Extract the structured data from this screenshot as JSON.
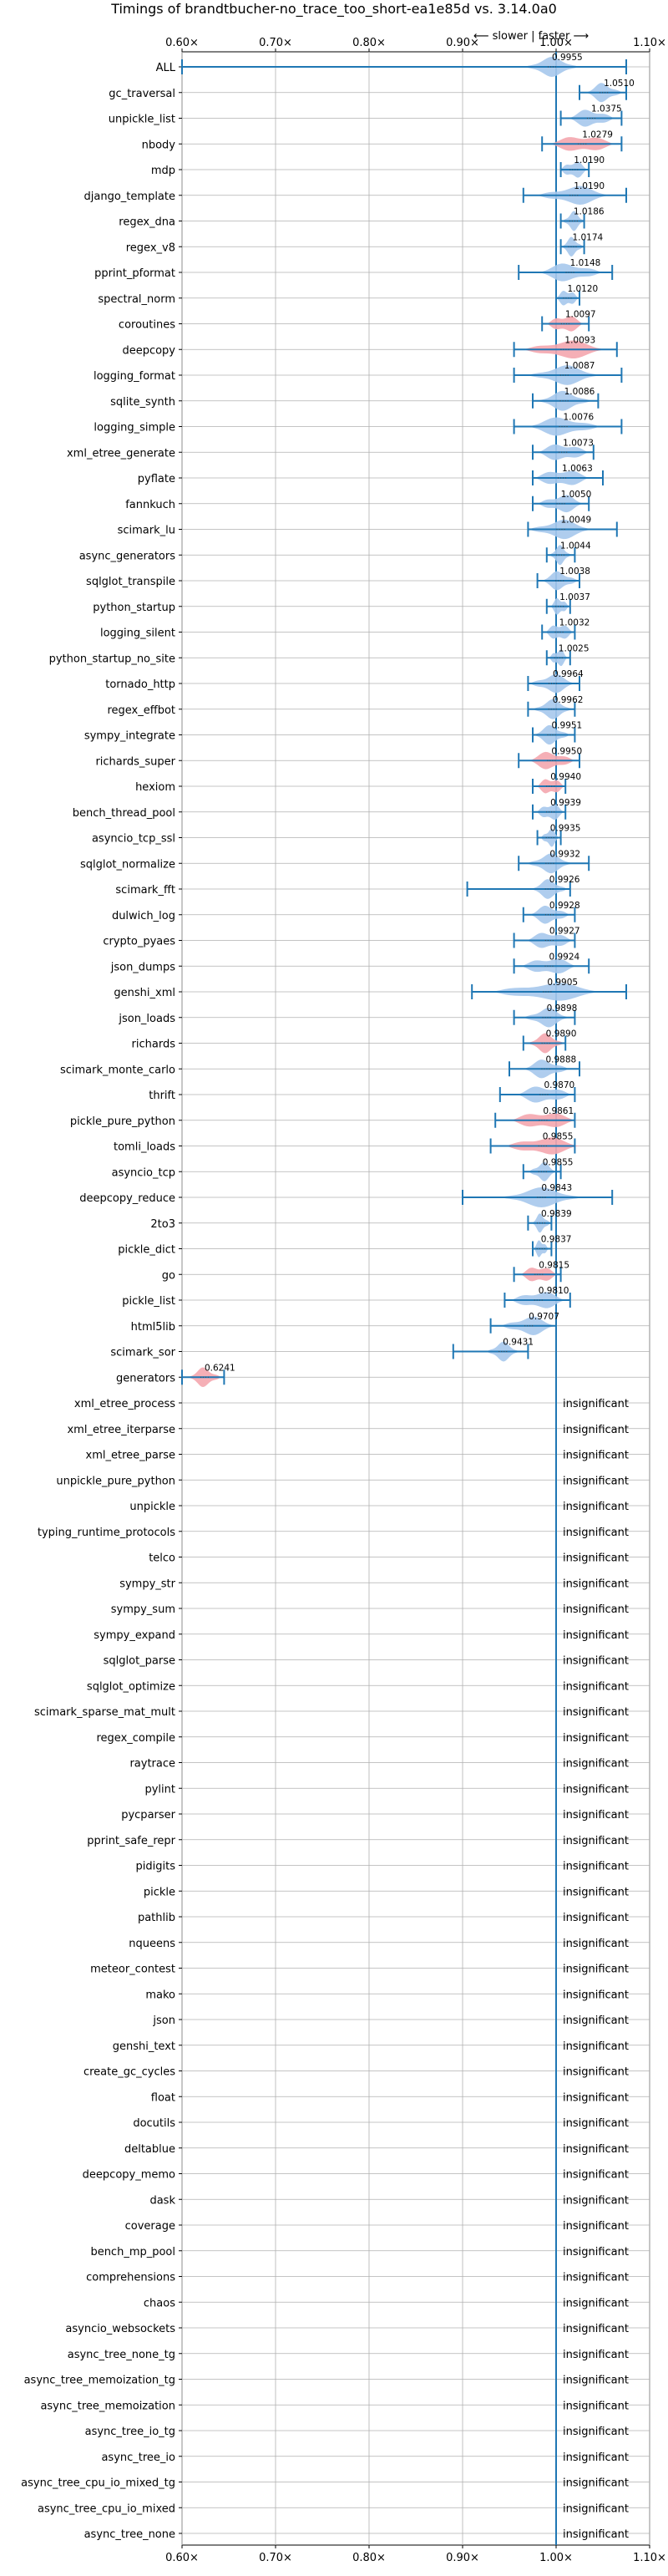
{
  "chart_data": {
    "type": "violin",
    "title": "Timings of brandtbucher-no_trace_too_short-ea1e85d vs. 3.14.0a0",
    "direction_note": "⟵ slower  |  faster ⟶",
    "xlim": [
      0.6,
      1.1
    ],
    "x_ticks": [
      0.6,
      0.7,
      0.8,
      0.9,
      1.0,
      1.1
    ],
    "x_tick_labels": [
      "0.60×",
      "0.70×",
      "0.80×",
      "0.90×",
      "1.00×",
      "1.10×"
    ],
    "reference_x": 1.0,
    "grid": true,
    "colors": {
      "faster": "#a6c8ec",
      "slower": "#f4a6ae",
      "line": "#1f77b4",
      "grid": "#b0b0b0"
    },
    "insignificant_label": "insignificant",
    "benchmarks": [
      {
        "name": "ALL",
        "value": 0.9955,
        "label": "0.9955",
        "lo": 0.6,
        "hi": 1.075,
        "spread": 0.03,
        "status": "faster"
      },
      {
        "name": "gc_traversal",
        "value": 1.051,
        "label": "1.0510",
        "lo": 1.025,
        "hi": 1.075,
        "spread": 0.02,
        "status": "faster"
      },
      {
        "name": "unpickle_list",
        "value": 1.0375,
        "label": "1.0375",
        "lo": 1.005,
        "hi": 1.07,
        "spread": 0.025,
        "status": "faster"
      },
      {
        "name": "nbody",
        "value": 1.0279,
        "label": "1.0279",
        "lo": 0.985,
        "hi": 1.07,
        "spread": 0.035,
        "status": "slower"
      },
      {
        "name": "mdp",
        "value": 1.019,
        "label": "1.0190",
        "lo": 1.005,
        "hi": 1.035,
        "spread": 0.015,
        "status": "faster"
      },
      {
        "name": "django_template",
        "value": 1.019,
        "label": "1.0190",
        "lo": 0.965,
        "hi": 1.075,
        "spread": 0.04,
        "status": "faster"
      },
      {
        "name": "regex_dna",
        "value": 1.0186,
        "label": "1.0186",
        "lo": 1.005,
        "hi": 1.03,
        "spread": 0.012,
        "status": "faster"
      },
      {
        "name": "regex_v8",
        "value": 1.0174,
        "label": "1.0174",
        "lo": 1.005,
        "hi": 1.03,
        "spread": 0.012,
        "status": "faster"
      },
      {
        "name": "pprint_pformat",
        "value": 1.0148,
        "label": "1.0148",
        "lo": 0.96,
        "hi": 1.06,
        "spread": 0.035,
        "status": "faster"
      },
      {
        "name": "spectral_norm",
        "value": 1.012,
        "label": "1.0120",
        "lo": 1.0,
        "hi": 1.025,
        "spread": 0.012,
        "status": "faster"
      },
      {
        "name": "coroutines",
        "value": 1.0097,
        "label": "1.0097",
        "lo": 0.985,
        "hi": 1.035,
        "spread": 0.02,
        "status": "slower"
      },
      {
        "name": "deepcopy",
        "value": 1.0093,
        "label": "1.0093",
        "lo": 0.955,
        "hi": 1.065,
        "spread": 0.045,
        "status": "slower"
      },
      {
        "name": "logging_format",
        "value": 1.0087,
        "label": "1.0087",
        "lo": 0.955,
        "hi": 1.07,
        "spread": 0.04,
        "status": "faster"
      },
      {
        "name": "sqlite_synth",
        "value": 1.0086,
        "label": "1.0086",
        "lo": 0.975,
        "hi": 1.045,
        "spread": 0.03,
        "status": "faster"
      },
      {
        "name": "logging_simple",
        "value": 1.0076,
        "label": "1.0076",
        "lo": 0.955,
        "hi": 1.07,
        "spread": 0.04,
        "status": "faster"
      },
      {
        "name": "xml_etree_generate",
        "value": 1.0073,
        "label": "1.0073",
        "lo": 0.975,
        "hi": 1.04,
        "spread": 0.028,
        "status": "faster"
      },
      {
        "name": "pyflate",
        "value": 1.0063,
        "label": "1.0063",
        "lo": 0.975,
        "hi": 1.05,
        "spread": 0.03,
        "status": "faster"
      },
      {
        "name": "fannkuch",
        "value": 1.005,
        "label": "1.0050",
        "lo": 0.975,
        "hi": 1.035,
        "spread": 0.025,
        "status": "faster"
      },
      {
        "name": "scimark_lu",
        "value": 1.0049,
        "label": "1.0049",
        "lo": 0.97,
        "hi": 1.065,
        "spread": 0.035,
        "status": "faster"
      },
      {
        "name": "async_generators",
        "value": 1.0044,
        "label": "1.0044",
        "lo": 0.99,
        "hi": 1.02,
        "spread": 0.012,
        "status": "faster"
      },
      {
        "name": "sqlglot_transpile",
        "value": 1.0038,
        "label": "1.0038",
        "lo": 0.98,
        "hi": 1.025,
        "spread": 0.02,
        "status": "faster"
      },
      {
        "name": "python_startup",
        "value": 1.0037,
        "label": "1.0037",
        "lo": 0.99,
        "hi": 1.015,
        "spread": 0.01,
        "status": "faster"
      },
      {
        "name": "logging_silent",
        "value": 1.0032,
        "label": "1.0032",
        "lo": 0.985,
        "hi": 1.02,
        "spread": 0.015,
        "status": "faster"
      },
      {
        "name": "python_startup_no_site",
        "value": 1.0025,
        "label": "1.0025",
        "lo": 0.99,
        "hi": 1.015,
        "spread": 0.01,
        "status": "faster"
      },
      {
        "name": "tornado_http",
        "value": 0.9964,
        "label": "0.9964",
        "lo": 0.97,
        "hi": 1.025,
        "spread": 0.025,
        "status": "faster"
      },
      {
        "name": "regex_effbot",
        "value": 0.9962,
        "label": "0.9962",
        "lo": 0.97,
        "hi": 1.02,
        "spread": 0.022,
        "status": "faster"
      },
      {
        "name": "sympy_integrate",
        "value": 0.9951,
        "label": "0.9951",
        "lo": 0.975,
        "hi": 1.02,
        "spread": 0.02,
        "status": "faster"
      },
      {
        "name": "richards_super",
        "value": 0.995,
        "label": "0.9950",
        "lo": 0.96,
        "hi": 1.025,
        "spread": 0.025,
        "status": "slower"
      },
      {
        "name": "hexiom",
        "value": 0.994,
        "label": "0.9940",
        "lo": 0.975,
        "hi": 1.01,
        "spread": 0.015,
        "status": "slower"
      },
      {
        "name": "bench_thread_pool",
        "value": 0.9939,
        "label": "0.9939",
        "lo": 0.975,
        "hi": 1.01,
        "spread": 0.015,
        "status": "faster"
      },
      {
        "name": "asyncio_tcp_ssl",
        "value": 0.9935,
        "label": "0.9935",
        "lo": 0.98,
        "hi": 1.005,
        "spread": 0.01,
        "status": "faster"
      },
      {
        "name": "sqlglot_normalize",
        "value": 0.9932,
        "label": "0.9932",
        "lo": 0.96,
        "hi": 1.035,
        "spread": 0.025,
        "status": "faster"
      },
      {
        "name": "scimark_fft",
        "value": 0.9926,
        "label": "0.9926",
        "lo": 0.905,
        "hi": 1.015,
        "spread": 0.02,
        "status": "faster"
      },
      {
        "name": "dulwich_log",
        "value": 0.9928,
        "label": "0.9928",
        "lo": 0.965,
        "hi": 1.02,
        "spread": 0.022,
        "status": "faster"
      },
      {
        "name": "crypto_pyaes",
        "value": 0.9927,
        "label": "0.9927",
        "lo": 0.955,
        "hi": 1.02,
        "spread": 0.025,
        "status": "faster"
      },
      {
        "name": "json_dumps",
        "value": 0.9924,
        "label": "0.9924",
        "lo": 0.955,
        "hi": 1.035,
        "spread": 0.03,
        "status": "faster"
      },
      {
        "name": "genshi_xml",
        "value": 0.9905,
        "label": "0.9905",
        "lo": 0.91,
        "hi": 1.075,
        "spread": 0.06,
        "status": "faster"
      },
      {
        "name": "json_loads",
        "value": 0.9898,
        "label": "0.9898",
        "lo": 0.955,
        "hi": 1.02,
        "spread": 0.025,
        "status": "faster"
      },
      {
        "name": "richards",
        "value": 0.989,
        "label": "0.9890",
        "lo": 0.965,
        "hi": 1.01,
        "spread": 0.02,
        "status": "slower"
      },
      {
        "name": "scimark_monte_carlo",
        "value": 0.9888,
        "label": "0.9888",
        "lo": 0.95,
        "hi": 1.025,
        "spread": 0.025,
        "status": "faster"
      },
      {
        "name": "thrift",
        "value": 0.987,
        "label": "0.9870",
        "lo": 0.94,
        "hi": 1.02,
        "spread": 0.03,
        "status": "faster"
      },
      {
        "name": "pickle_pure_python",
        "value": 0.9861,
        "label": "0.9861",
        "lo": 0.935,
        "hi": 1.02,
        "spread": 0.035,
        "status": "slower"
      },
      {
        "name": "tomli_loads",
        "value": 0.9855,
        "label": "0.9855",
        "lo": 0.93,
        "hi": 1.02,
        "spread": 0.04,
        "status": "slower"
      },
      {
        "name": "asyncio_tcp",
        "value": 0.9855,
        "label": "0.9855",
        "lo": 0.965,
        "hi": 1.005,
        "spread": 0.015,
        "status": "faster"
      },
      {
        "name": "deepcopy_reduce",
        "value": 0.9843,
        "label": "0.9843",
        "lo": 0.9,
        "hi": 1.06,
        "spread": 0.045,
        "status": "faster"
      },
      {
        "name": "2to3",
        "value": 0.9839,
        "label": "0.9839",
        "lo": 0.97,
        "hi": 0.995,
        "spread": 0.01,
        "status": "faster"
      },
      {
        "name": "pickle_dict",
        "value": 0.9837,
        "label": "0.9837",
        "lo": 0.975,
        "hi": 0.995,
        "spread": 0.008,
        "status": "faster"
      },
      {
        "name": "go",
        "value": 0.9815,
        "label": "0.9815",
        "lo": 0.955,
        "hi": 1.005,
        "spread": 0.02,
        "status": "slower"
      },
      {
        "name": "pickle_list",
        "value": 0.981,
        "label": "0.9810",
        "lo": 0.945,
        "hi": 1.015,
        "spread": 0.03,
        "status": "faster"
      },
      {
        "name": "html5lib",
        "value": 0.9707,
        "label": "0.9707",
        "lo": 0.93,
        "hi": 1.0,
        "spread": 0.03,
        "status": "faster"
      },
      {
        "name": "scimark_sor",
        "value": 0.9431,
        "label": "0.9431",
        "lo": 0.89,
        "hi": 0.97,
        "spread": 0.018,
        "status": "faster"
      },
      {
        "name": "generators",
        "value": 0.6241,
        "label": "0.6241",
        "lo": 0.6,
        "hi": 0.645,
        "spread": 0.018,
        "status": "slower"
      },
      {
        "name": "xml_etree_process",
        "status": "insignificant"
      },
      {
        "name": "xml_etree_iterparse",
        "status": "insignificant"
      },
      {
        "name": "xml_etree_parse",
        "status": "insignificant"
      },
      {
        "name": "unpickle_pure_python",
        "status": "insignificant"
      },
      {
        "name": "unpickle",
        "status": "insignificant"
      },
      {
        "name": "typing_runtime_protocols",
        "status": "insignificant"
      },
      {
        "name": "telco",
        "status": "insignificant"
      },
      {
        "name": "sympy_str",
        "status": "insignificant"
      },
      {
        "name": "sympy_sum",
        "status": "insignificant"
      },
      {
        "name": "sympy_expand",
        "status": "insignificant"
      },
      {
        "name": "sqlglot_parse",
        "status": "insignificant"
      },
      {
        "name": "sqlglot_optimize",
        "status": "insignificant"
      },
      {
        "name": "scimark_sparse_mat_mult",
        "status": "insignificant"
      },
      {
        "name": "regex_compile",
        "status": "insignificant"
      },
      {
        "name": "raytrace",
        "status": "insignificant"
      },
      {
        "name": "pylint",
        "status": "insignificant"
      },
      {
        "name": "pycparser",
        "status": "insignificant"
      },
      {
        "name": "pprint_safe_repr",
        "status": "insignificant"
      },
      {
        "name": "pidigits",
        "status": "insignificant"
      },
      {
        "name": "pickle",
        "status": "insignificant"
      },
      {
        "name": "pathlib",
        "status": "insignificant"
      },
      {
        "name": "nqueens",
        "status": "insignificant"
      },
      {
        "name": "meteor_contest",
        "status": "insignificant"
      },
      {
        "name": "mako",
        "status": "insignificant"
      },
      {
        "name": "json",
        "status": "insignificant"
      },
      {
        "name": "genshi_text",
        "status": "insignificant"
      },
      {
        "name": "create_gc_cycles",
        "status": "insignificant"
      },
      {
        "name": "float",
        "status": "insignificant"
      },
      {
        "name": "docutils",
        "status": "insignificant"
      },
      {
        "name": "deltablue",
        "status": "insignificant"
      },
      {
        "name": "deepcopy_memo",
        "status": "insignificant"
      },
      {
        "name": "dask",
        "status": "insignificant"
      },
      {
        "name": "coverage",
        "status": "insignificant"
      },
      {
        "name": "bench_mp_pool",
        "status": "insignificant"
      },
      {
        "name": "comprehensions",
        "status": "insignificant"
      },
      {
        "name": "chaos",
        "status": "insignificant"
      },
      {
        "name": "asyncio_websockets",
        "status": "insignificant"
      },
      {
        "name": "async_tree_none_tg",
        "status": "insignificant"
      },
      {
        "name": "async_tree_memoization_tg",
        "status": "insignificant"
      },
      {
        "name": "async_tree_memoization",
        "status": "insignificant"
      },
      {
        "name": "async_tree_io_tg",
        "status": "insignificant"
      },
      {
        "name": "async_tree_io",
        "status": "insignificant"
      },
      {
        "name": "async_tree_cpu_io_mixed_tg",
        "status": "insignificant"
      },
      {
        "name": "async_tree_cpu_io_mixed",
        "status": "insignificant"
      },
      {
        "name": "async_tree_none",
        "status": "insignificant"
      }
    ]
  }
}
